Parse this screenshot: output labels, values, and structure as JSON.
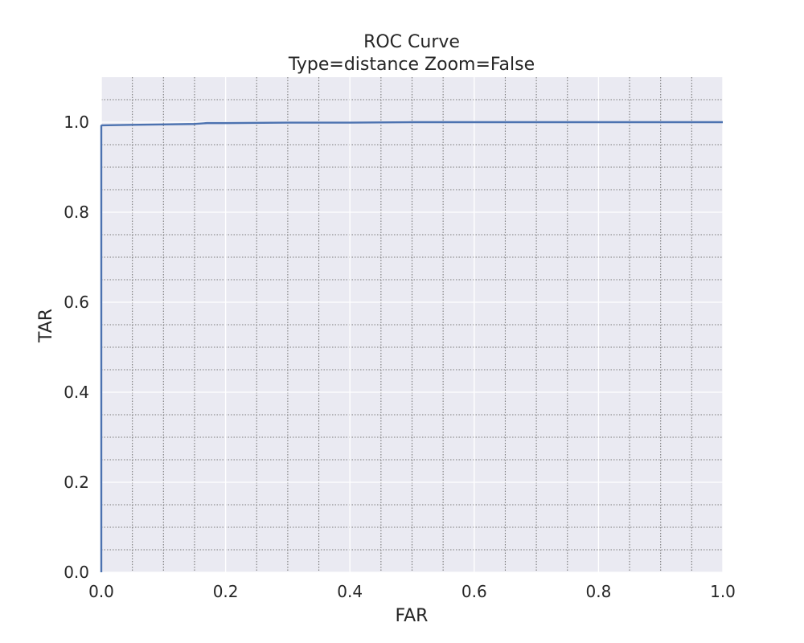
{
  "chart_data": {
    "type": "line",
    "title": "ROC Curve",
    "subtitle": "Type=distance Zoom=False",
    "xlabel": "FAR",
    "ylabel": "TAR",
    "xlim": [
      0.0,
      1.0
    ],
    "ylim": [
      0.0,
      1.1
    ],
    "xticks": [
      "0.0",
      "0.2",
      "0.4",
      "0.6",
      "0.8",
      "1.0"
    ],
    "yticks": [
      "0.0",
      "0.2",
      "0.4",
      "0.6",
      "0.8",
      "1.0"
    ],
    "grid": true,
    "minor_grid": true,
    "series": [
      {
        "color": "#4c72b0",
        "x": [
          0.0,
          0.0,
          0.001,
          0.05,
          0.1,
          0.15,
          0.17,
          0.2,
          0.3,
          0.4,
          0.5,
          0.6,
          0.8,
          1.0
        ],
        "y": [
          0.0,
          0.992,
          0.993,
          0.994,
          0.995,
          0.996,
          0.998,
          0.998,
          0.999,
          0.999,
          1.0,
          1.0,
          1.0,
          1.0
        ]
      }
    ],
    "colors": {
      "plot_background": "#eaeaf2",
      "major_grid": "#ffffff",
      "minor_grid": "#7a7a7a",
      "text": "#262626"
    }
  }
}
